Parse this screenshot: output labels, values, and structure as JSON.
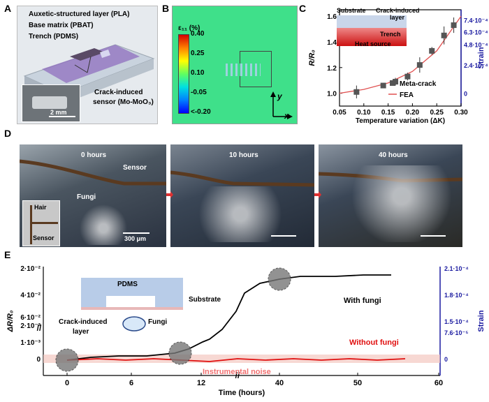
{
  "panel_labels": {
    "a": "A",
    "b": "B",
    "c": "C",
    "d": "D",
    "e": "E"
  },
  "panelA": {
    "layer1": "Auxetic-structured layer (PLA)",
    "layer2": "Base matrix (PBAT)",
    "layer3": "Trench (PDMS)",
    "sensor_line1": "Crack-induced",
    "sensor_line2": "sensor (Mo-MoO₃)",
    "scale": "2 mm"
  },
  "panelB": {
    "colorbar_title": "ε₁₁ (%)",
    "ticks": [
      "0.40",
      "0.25",
      "0.10",
      "-0.05",
      "<-0.20"
    ],
    "axis_y": "y",
    "axis_x": "x",
    "colors": {
      "field": "#3fe08a",
      "top": "#d40000",
      "bottom": "#0000ff"
    }
  },
  "panelC_inset": {
    "substrate": "Substrate",
    "crack_line1": "Crack-induced",
    "crack_line2": "layer",
    "trench": "Trench",
    "heat": "Heat source"
  },
  "panelD": {
    "t0": "0 hours",
    "t1": "10 hours",
    "t2": "40 hours",
    "sensor": "Sensor",
    "fungi": "Fungi",
    "inset_hair": "Hair",
    "inset_sensor": "Sensor",
    "scale": "300 μm"
  },
  "panelE_inset": {
    "pdms": "PDMS",
    "substrate": "Substrate",
    "crack_line1": "Crack-induced",
    "crack_line2": "layer",
    "fungi": "Fungi"
  },
  "chart_data": [
    {
      "type": "scatter",
      "xlabel": "Temperature variation (ΔK)",
      "ylabel": "R/R₀",
      "y2label": "Strain",
      "xlim": [
        0.05,
        0.3
      ],
      "ylim": [
        0.9,
        1.65
      ],
      "x_ticks": [
        "0.05",
        "0.10",
        "0.15",
        "0.20",
        "0.25",
        "0.30"
      ],
      "y_ticks": [
        "1.0",
        "1.2",
        "1.4",
        "1.6"
      ],
      "y2_ticks": [
        "0",
        "2.4·10⁻⁴",
        "4.8·10⁻⁴",
        "6.3·10⁻⁴",
        "7.4·10⁻⁴"
      ],
      "series": [
        {
          "name": "Meta-crack",
          "x": [
            0.085,
            0.14,
            0.165,
            0.19,
            0.215,
            0.24,
            0.265,
            0.285
          ],
          "y": [
            1.01,
            1.06,
            1.09,
            1.13,
            1.22,
            1.33,
            1.45,
            1.53
          ],
          "err": [
            0.05,
            0.02,
            0.03,
            0.03,
            0.06,
            0.03,
            0.07,
            0.06
          ],
          "color": "#555555"
        },
        {
          "name": "FEA",
          "x": [
            0.05,
            0.1,
            0.15,
            0.2,
            0.25,
            0.3
          ],
          "y": [
            1.0,
            1.03,
            1.08,
            1.17,
            1.33,
            1.6
          ],
          "color": "#e05050"
        }
      ]
    },
    {
      "type": "line",
      "xlabel": "Time (hours)",
      "ylabel": "ΔR/R₀",
      "y2label": "Strain",
      "x_ticks": [
        "0",
        "6",
        "12",
        "40",
        "50",
        "60"
      ],
      "y_ticks_top": [
        "2·10⁻²",
        "4·10⁻²",
        "6·10⁻²"
      ],
      "y_ticks_bottom": [
        "0",
        "1·10⁻³",
        "2·10⁻³"
      ],
      "y2_ticks": [
        "0",
        "7.6·10⁻⁵",
        "1.5·10⁻⁴",
        "1.8·10⁻⁴",
        "2.1·10⁻⁴"
      ],
      "noise_label": "Instrumental noise",
      "series": [
        {
          "name": "With fungi",
          "color": "#000000"
        },
        {
          "name": "Without fungi",
          "color": "#e01010"
        }
      ]
    }
  ]
}
